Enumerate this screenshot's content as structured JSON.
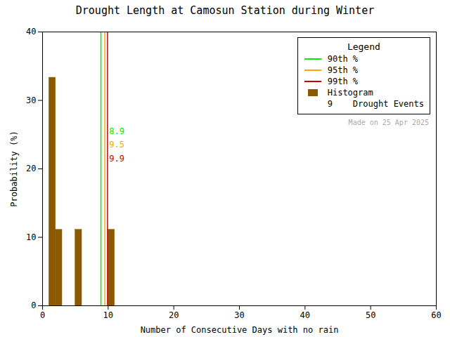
{
  "chart_data": {
    "type": "histogram",
    "title": "Drought Length at Camosun Station during Winter",
    "xlabel": "Number of Consecutive Days with no rain",
    "ylabel": "Probability (%)",
    "xlim": [
      0,
      60
    ],
    "ylim": [
      0,
      40
    ],
    "xticks": [
      0,
      10,
      20,
      30,
      40,
      50,
      60
    ],
    "yticks": [
      0,
      10,
      20,
      30,
      40
    ],
    "grid": false,
    "legend": "upper right",
    "legend_title": "Legend",
    "series": [
      {
        "name": "90th %",
        "type": "vline",
        "color": "#00EE00",
        "x": 8.9
      },
      {
        "name": "95th %",
        "type": "vline",
        "color": "#FFA500",
        "x": 9.5
      },
      {
        "name": "99th %",
        "type": "vline",
        "color": "#CC0000",
        "x": 9.9
      },
      {
        "name": "Histogram",
        "type": "bar",
        "color": "#8B5A00",
        "x": [
          1,
          2,
          5,
          10
        ],
        "bin_width": 1.0,
        "values": [
          33.33,
          11.11,
          11.11,
          11.11
        ]
      }
    ],
    "legend_note": "9    Drought Events",
    "annotations": [
      {
        "text": "8.9",
        "x": 10.15,
        "y": 25.5,
        "color": "#00EE00"
      },
      {
        "text": "9.5",
        "x": 10.15,
        "y": 23.5,
        "color": "#FFA500"
      },
      {
        "text": "9.9",
        "x": 10.15,
        "y": 21.5,
        "color": "#CC0000"
      },
      {
        "text": "Made on 25 Apr 2025",
        "color": "#AAAAAA"
      }
    ]
  }
}
